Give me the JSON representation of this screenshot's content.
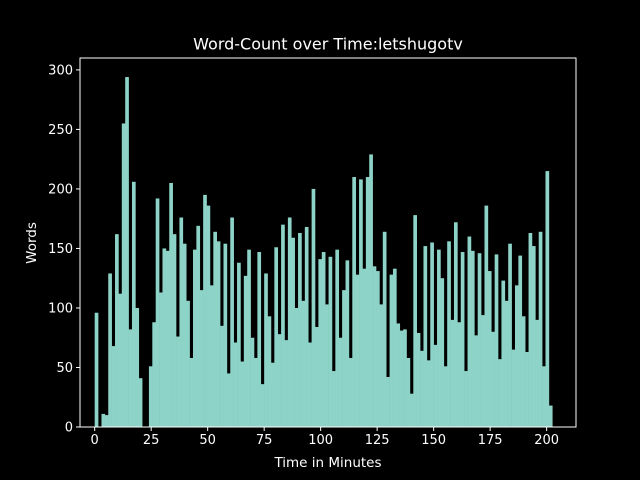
{
  "chart_data": {
    "type": "bar",
    "title": "Word-Count over Time:letshugotv",
    "xlabel": "Time in Minutes",
    "ylabel": "Words",
    "xlim": [
      -6.5,
      213
    ],
    "ylim": [
      0,
      310
    ],
    "xticks": [
      0,
      25,
      50,
      75,
      100,
      125,
      150,
      175,
      200
    ],
    "yticks": [
      0,
      50,
      100,
      150,
      200,
      250,
      300
    ],
    "grid": false,
    "colors": {
      "background": "#000000",
      "bar": "#8dd3c7",
      "text": "#ffffff"
    },
    "x_start": 0,
    "values": [
      96,
      0,
      11,
      10,
      129,
      68,
      162,
      112,
      255,
      294,
      82,
      206,
      100,
      41,
      0,
      0,
      51,
      88,
      192,
      113,
      150,
      148,
      205,
      162,
      76,
      176,
      154,
      106,
      58,
      149,
      169,
      115,
      195,
      186,
      119,
      164,
      156,
      85,
      154,
      45,
      176,
      71,
      138,
      55,
      127,
      149,
      75,
      58,
      147,
      36,
      129,
      93,
      54,
      151,
      78,
      170,
      73,
      176,
      159,
      100,
      163,
      106,
      168,
      71,
      200,
      84,
      141,
      147,
      103,
      143,
      47,
      149,
      75,
      115,
      140,
      58,
      210,
      128,
      208,
      133,
      210,
      229,
      135,
      131,
      103,
      164,
      42,
      128,
      133,
      87,
      81,
      82,
      58,
      28,
      178,
      79,
      64,
      152,
      56,
      155,
      69,
      149,
      125,
      51,
      156,
      90,
      172,
      88,
      147,
      47,
      160,
      148,
      77,
      146,
      94,
      186,
      131,
      80,
      145,
      57,
      123,
      106,
      154,
      65,
      119,
      144,
      93,
      63,
      163,
      152,
      90,
      164,
      51,
      215,
      18
    ]
  }
}
